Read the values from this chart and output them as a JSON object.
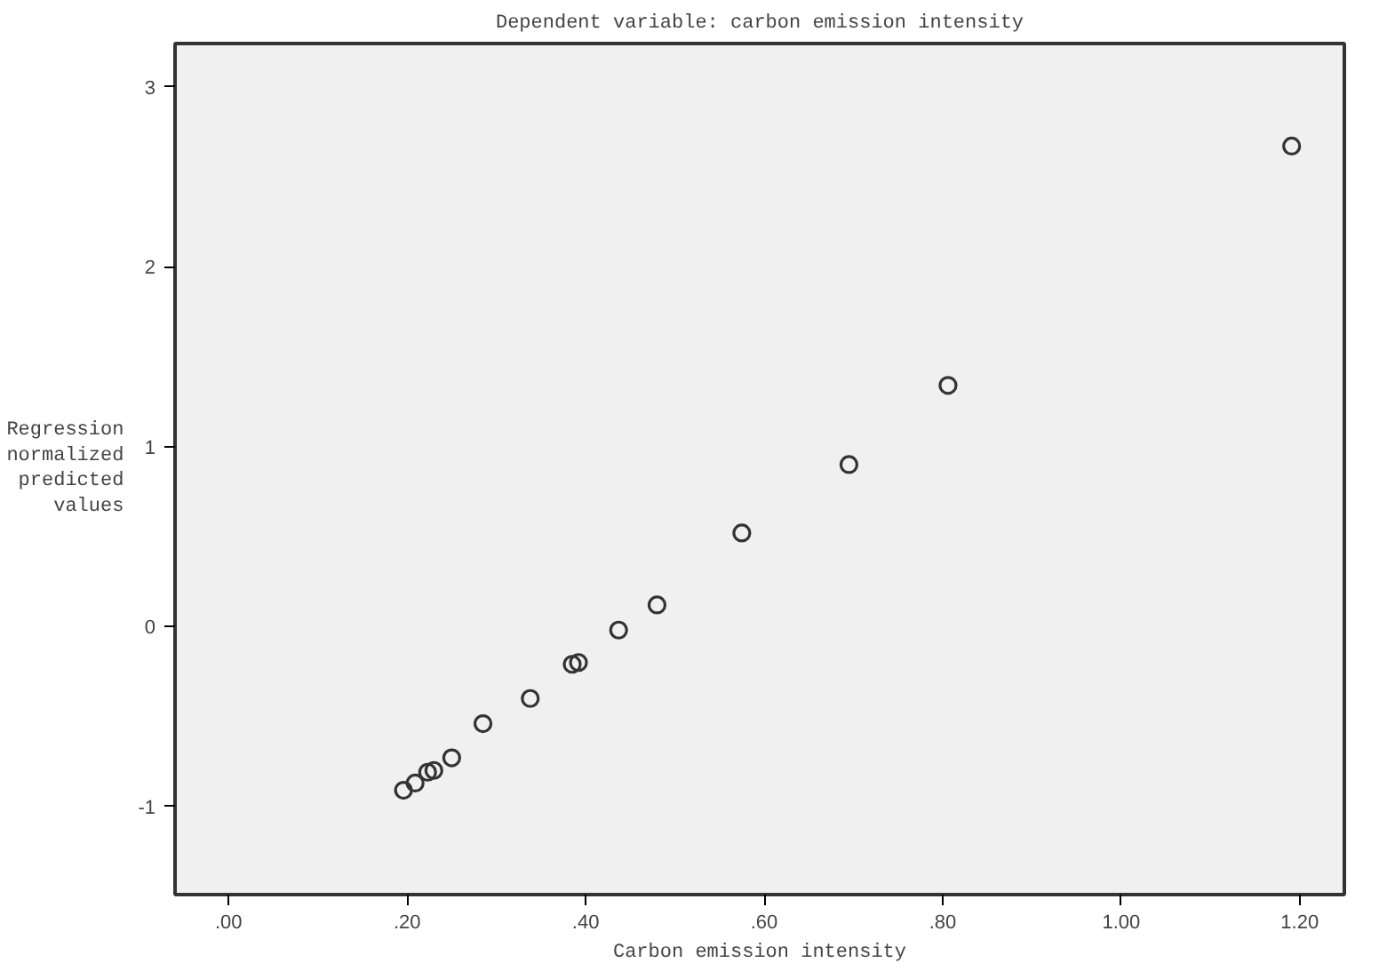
{
  "chart_data": {
    "type": "scatter",
    "title": "Dependent variable: carbon emission intensity",
    "xlabel": "Carbon emission intensity",
    "ylabel": "Regression normalized predicted values",
    "x": [
      0.196,
      0.209,
      0.223,
      0.23,
      0.25,
      0.285,
      0.338,
      0.385,
      0.392,
      0.437,
      0.48,
      0.575,
      0.695,
      0.806,
      1.191
    ],
    "series": [
      {
        "color": "#333333",
        "values": [
          -0.91,
          -0.87,
          -0.81,
          -0.8,
          -0.73,
          -0.54,
          -0.4,
          -0.21,
          -0.2,
          -0.02,
          0.12,
          0.52,
          0.9,
          1.34,
          2.67
        ]
      }
    ],
    "xlim": [
      -0.06,
      1.25
    ],
    "ylim": [
      -1.49,
      3.24
    ],
    "xticks": [
      {
        "value": 0,
        "label": ".00"
      },
      {
        "value": 0.2,
        "label": ".20"
      },
      {
        "value": 0.4,
        "label": ".40"
      },
      {
        "value": 0.6,
        "label": ".60"
      },
      {
        "value": 0.8,
        "label": ".80"
      },
      {
        "value": 1.0,
        "label": "1.00"
      },
      {
        "value": 1.2,
        "label": "1.20"
      }
    ],
    "yticks": [
      -1,
      0,
      1,
      2,
      3
    ],
    "grid": false,
    "marker": "circle"
  }
}
